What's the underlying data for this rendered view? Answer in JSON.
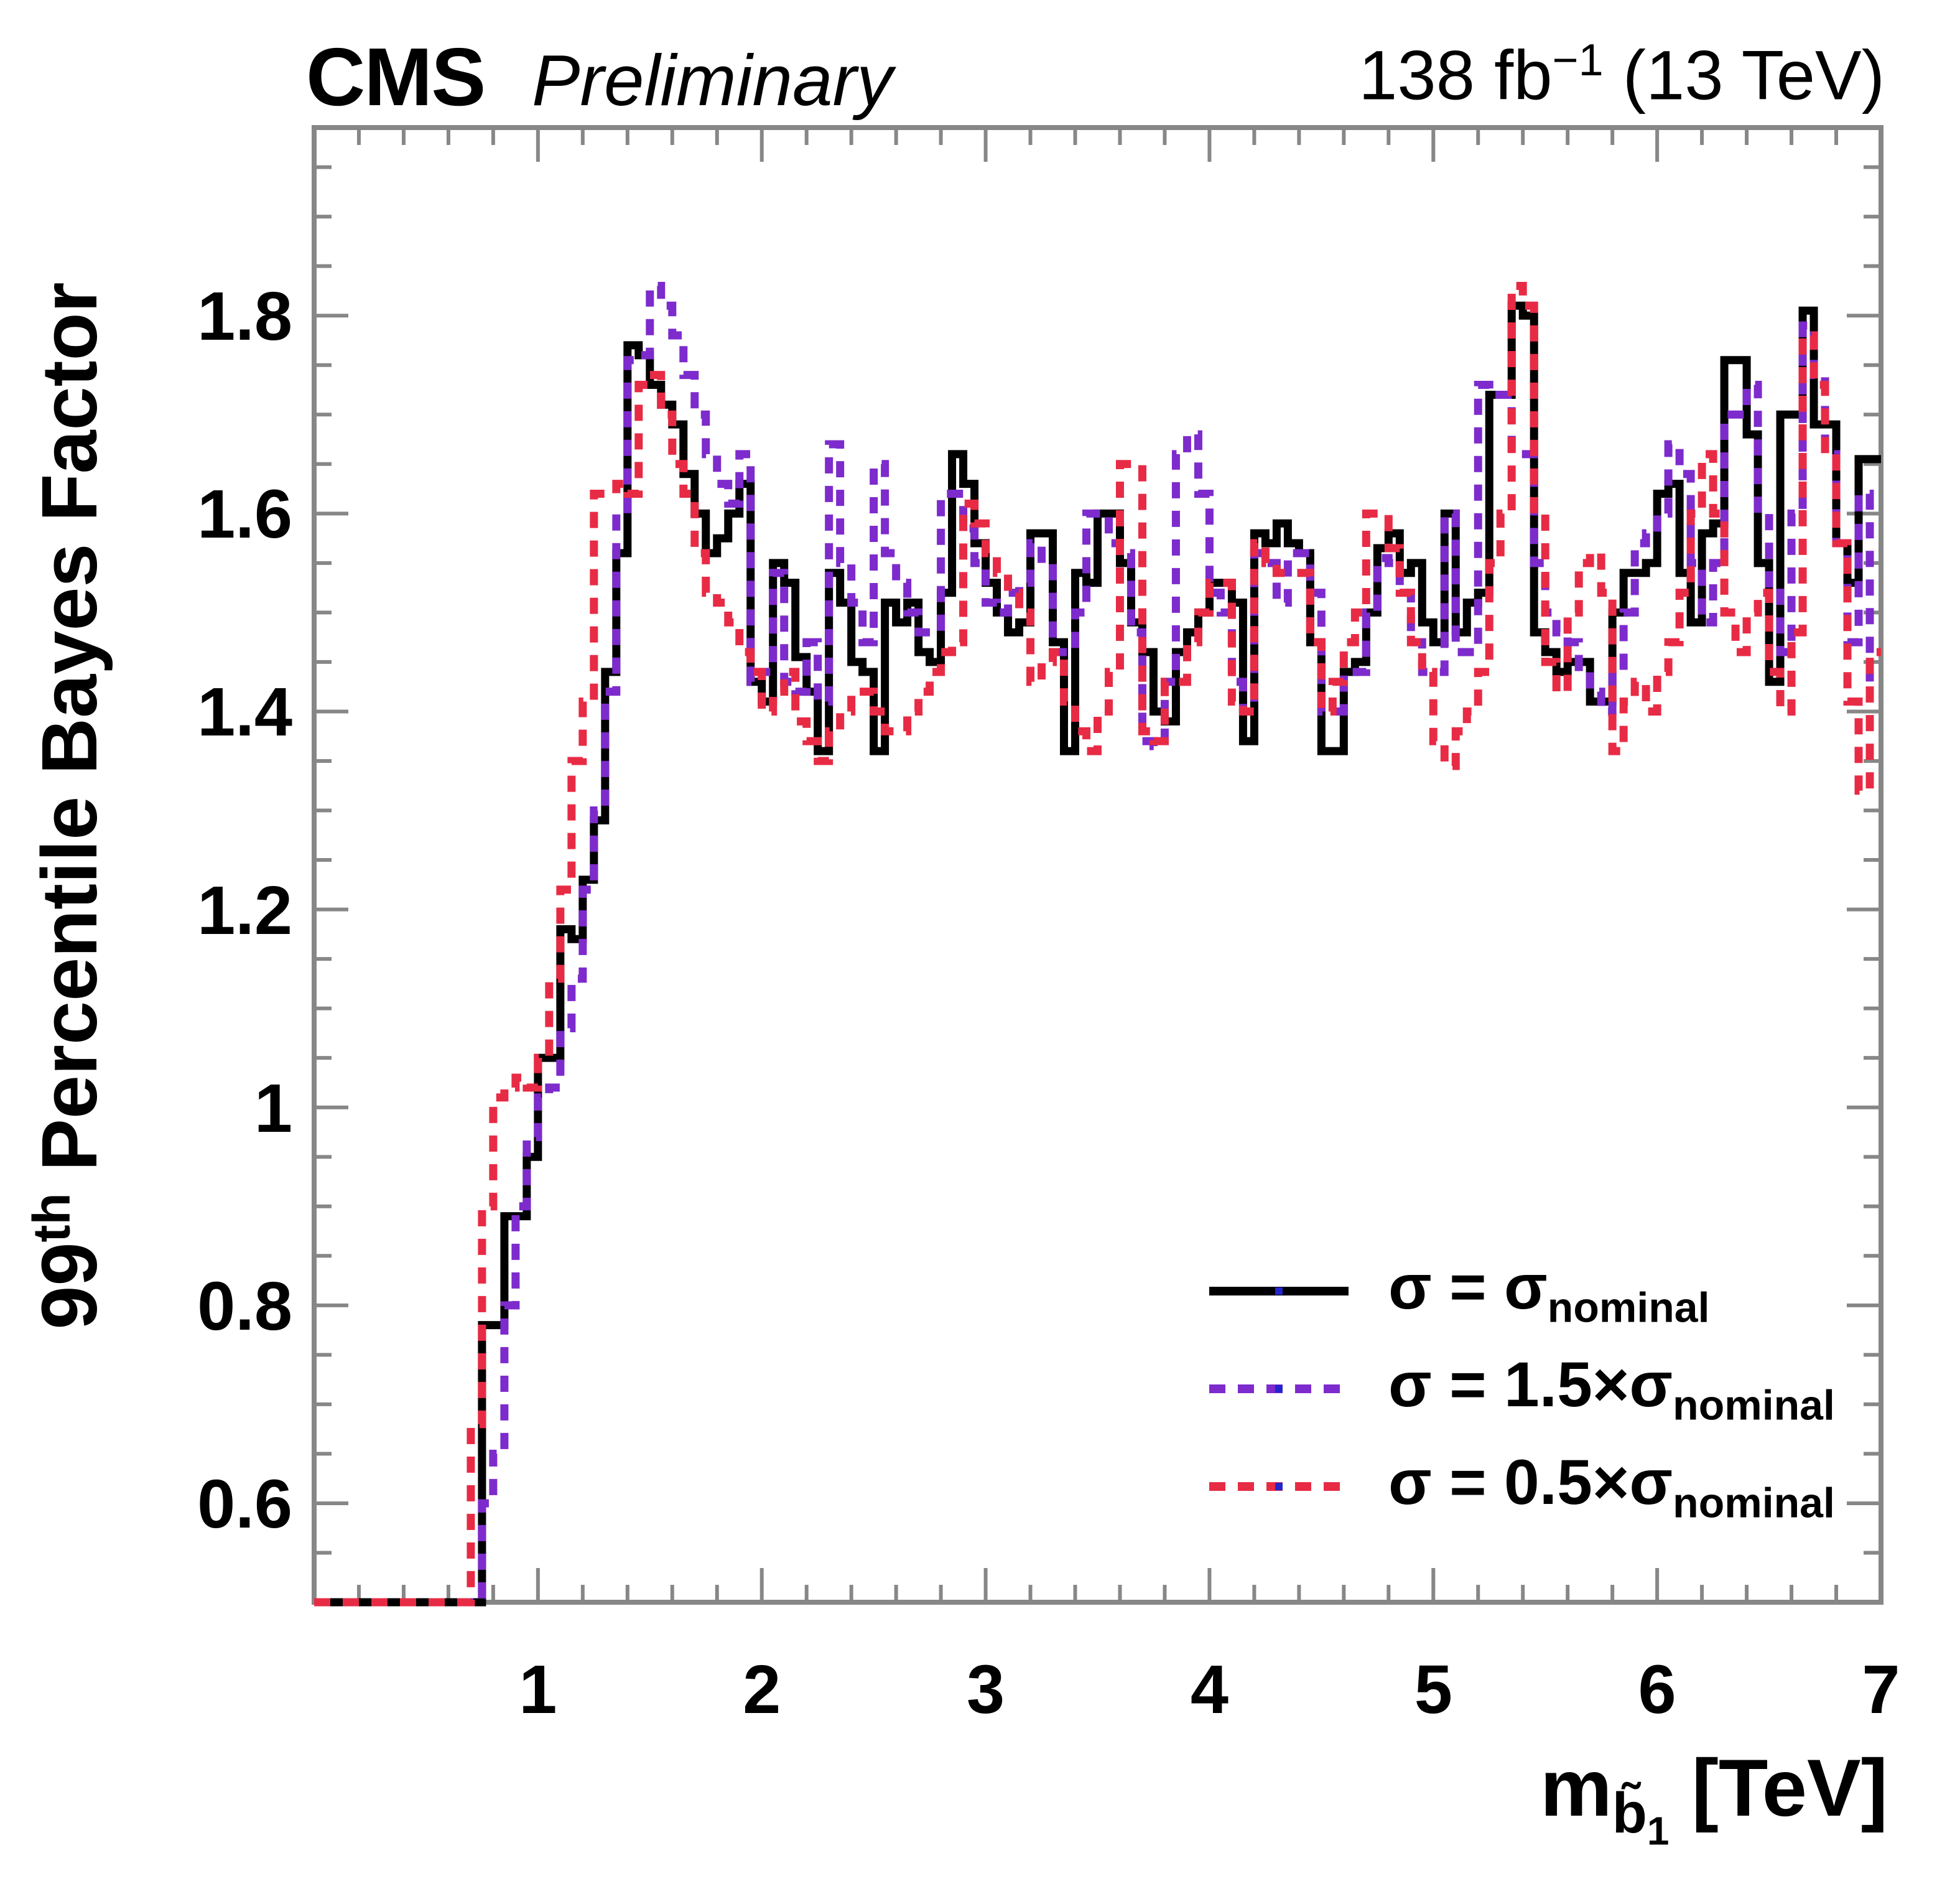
{
  "header": {
    "experiment": "CMS",
    "status": "Preliminary",
    "lumi_prefix": "138 fb",
    "lumi_sup": "−1",
    "lumi_suffix": " (13 TeV)"
  },
  "y_axis_title": {
    "prefix": "99",
    "sup": "th",
    "rest": " Percentile Bayes Factor"
  },
  "x_axis_title": {
    "base": "m",
    "sub_main": "b̃",
    "sub_sub": "1",
    "rest": " [TeV]"
  },
  "colors": {
    "nominal": "#000000",
    "sigma_1p5": "#7D2BCC",
    "sigma_0p5": "#E82B45",
    "frame": "#878787",
    "legend_marker_blue": "#2424CC"
  },
  "legend": {
    "entries": [
      {
        "id": "nominal",
        "prefix": "σ = σ",
        "sub": "nominal",
        "color": "#000000",
        "dashed": false
      },
      {
        "id": "sigma_1p5",
        "prefix": "σ = 1.5×σ",
        "sub": "nominal",
        "color": "#7D2BCC",
        "dashed": true
      },
      {
        "id": "sigma_0p5",
        "prefix": "σ = 0.5×σ",
        "sub": "nominal",
        "color": "#E82B45",
        "dashed": true
      }
    ]
  },
  "chart_data": {
    "type": "line",
    "style": "step-histogram",
    "title": "CMS Preliminary 138 fb-1 (13 TeV)",
    "xlabel": "m_b1 [TeV]",
    "ylabel": "99th Percentile Bayes Factor",
    "grid": false,
    "legend_position": "lower right",
    "x": {
      "min": 0.0,
      "max": 7.0,
      "ticks": [
        1,
        2,
        3,
        4,
        5,
        6,
        7
      ],
      "tick_labels": [
        "1",
        "2",
        "3",
        "4",
        "5",
        "6",
        "7"
      ],
      "minor_step": 0.2
    },
    "y": {
      "min": 0.5,
      "max": 1.99,
      "ticks": [
        0.6,
        0.8,
        1.0,
        1.2,
        1.4,
        1.6,
        1.8
      ],
      "tick_labels": [
        "0.6",
        "0.8",
        "1",
        "1.2",
        "1.4",
        "1.6",
        "1.8"
      ],
      "minor_step": 0.05
    },
    "x_start": 0.0,
    "bin_width": 0.05,
    "n_bins": 140,
    "series": [
      {
        "name": "sigma = sigma_nominal",
        "color": "#000000",
        "dashed": false,
        "values": [
          0.5,
          0.5,
          0.5,
          0.5,
          0.5,
          0.5,
          0.5,
          0.5,
          0.5,
          0.5,
          0.5,
          0.5,
          0.5,
          0.5,
          0.5,
          0.78,
          0.78,
          0.89,
          0.89,
          0.95,
          1.05,
          1.05,
          1.18,
          1.17,
          1.23,
          1.29,
          1.44,
          1.56,
          1.77,
          1.76,
          1.73,
          1.71,
          1.69,
          1.64,
          1.6,
          1.56,
          1.575,
          1.6,
          1.63,
          1.43,
          1.41,
          1.55,
          1.53,
          1.455,
          1.42,
          1.36,
          1.54,
          1.51,
          1.45,
          1.44,
          1.36,
          1.51,
          1.49,
          1.51,
          1.46,
          1.45,
          1.52,
          1.66,
          1.63,
          1.57,
          1.53,
          1.5,
          1.48,
          1.49,
          1.58,
          1.58,
          1.47,
          1.36,
          1.54,
          1.53,
          1.6,
          1.6,
          1.55,
          1.49,
          1.46,
          1.4,
          1.39,
          1.46,
          1.48,
          1.5,
          1.53,
          1.53,
          1.51,
          1.37,
          1.58,
          1.57,
          1.59,
          1.57,
          1.56,
          1.47,
          1.36,
          1.36,
          1.44,
          1.45,
          1.5,
          1.565,
          1.58,
          1.54,
          1.55,
          1.49,
          1.47,
          1.6,
          1.48,
          1.51,
          1.52,
          1.72,
          1.72,
          1.81,
          1.8,
          1.48,
          1.46,
          1.44,
          1.45,
          1.45,
          1.41,
          1.41,
          1.5,
          1.54,
          1.54,
          1.55,
          1.62,
          1.63,
          1.54,
          1.49,
          1.58,
          1.59,
          1.755,
          1.755,
          1.68,
          1.55,
          1.43,
          1.7,
          1.7,
          1.805,
          1.69,
          1.69,
          1.57,
          1.53,
          1.655,
          1.655
        ]
      },
      {
        "name": "sigma = 1.5 x sigma_nominal",
        "color": "#7D2BCC",
        "dashed": true,
        "values": [
          0.5,
          0.5,
          0.5,
          0.5,
          0.5,
          0.5,
          0.5,
          0.5,
          0.5,
          0.5,
          0.5,
          0.5,
          0.5,
          0.5,
          0.5,
          0.6,
          0.65,
          0.8,
          0.9,
          0.97,
          1.01,
          1.02,
          1.08,
          1.13,
          1.22,
          1.3,
          1.42,
          1.6,
          1.755,
          1.76,
          1.83,
          1.81,
          1.78,
          1.74,
          1.7,
          1.66,
          1.63,
          1.61,
          1.66,
          1.43,
          1.44,
          1.54,
          1.43,
          1.42,
          1.47,
          1.41,
          1.67,
          1.55,
          1.51,
          1.47,
          1.65,
          1.56,
          1.53,
          1.5,
          1.48,
          1.48,
          1.62,
          1.62,
          1.585,
          1.55,
          1.51,
          1.5,
          1.52,
          1.53,
          1.57,
          1.55,
          1.46,
          1.46,
          1.5,
          1.6,
          1.6,
          1.57,
          1.56,
          1.48,
          1.37,
          1.365,
          1.43,
          1.66,
          1.68,
          1.62,
          1.52,
          1.5,
          1.43,
          1.4,
          1.56,
          1.55,
          1.51,
          1.56,
          1.56,
          1.52,
          1.4,
          1.4,
          1.44,
          1.44,
          1.5,
          1.555,
          1.55,
          1.52,
          1.47,
          1.44,
          1.44,
          1.6,
          1.46,
          1.46,
          1.73,
          1.72,
          1.72,
          1.66,
          1.66,
          1.55,
          1.5,
          1.48,
          1.47,
          1.44,
          1.42,
          1.4,
          1.44,
          1.5,
          1.57,
          1.58,
          1.6,
          1.67,
          1.64,
          1.55,
          1.49,
          1.55,
          1.7,
          1.7,
          1.73,
          1.6,
          1.52,
          1.46,
          1.6,
          1.79,
          1.74,
          1.66,
          1.57,
          1.47,
          1.62,
          1.43
        ]
      },
      {
        "name": "sigma = 0.5 x sigma_nominal",
        "color": "#E82B45",
        "dashed": true,
        "values": [
          0.5,
          0.5,
          0.5,
          0.5,
          0.5,
          0.5,
          0.5,
          0.5,
          0.5,
          0.5,
          0.5,
          0.5,
          0.5,
          0.5,
          0.68,
          0.9,
          1.01,
          1.02,
          1.03,
          1.02,
          1.05,
          1.13,
          1.22,
          1.35,
          1.41,
          1.62,
          1.62,
          1.63,
          1.62,
          1.73,
          1.74,
          1.7,
          1.65,
          1.62,
          1.56,
          1.52,
          1.51,
          1.49,
          1.46,
          1.44,
          1.4,
          1.42,
          1.44,
          1.39,
          1.37,
          1.35,
          1.38,
          1.4,
          1.42,
          1.42,
          1.4,
          1.38,
          1.38,
          1.4,
          1.42,
          1.44,
          1.46,
          1.47,
          1.61,
          1.59,
          1.56,
          1.54,
          1.52,
          1.5,
          1.43,
          1.45,
          1.46,
          1.41,
          1.38,
          1.36,
          1.4,
          1.44,
          1.65,
          1.65,
          1.38,
          1.37,
          1.43,
          1.43,
          1.47,
          1.5,
          1.53,
          1.53,
          1.41,
          1.4,
          1.57,
          1.55,
          1.54,
          1.54,
          1.54,
          1.47,
          1.4,
          1.43,
          1.47,
          1.5,
          1.6,
          1.6,
          1.565,
          1.52,
          1.47,
          1.44,
          1.37,
          1.345,
          1.38,
          1.4,
          1.44,
          1.55,
          1.6,
          1.83,
          1.81,
          1.6,
          1.45,
          1.42,
          1.5,
          1.55,
          1.56,
          1.52,
          1.36,
          1.41,
          1.43,
          1.4,
          1.44,
          1.47,
          1.52,
          1.6,
          1.66,
          1.6,
          1.5,
          1.46,
          1.5,
          1.52,
          1.44,
          1.4,
          1.48,
          1.78,
          1.73,
          1.66,
          1.57,
          1.41,
          1.32,
          1.46
        ]
      }
    ]
  }
}
